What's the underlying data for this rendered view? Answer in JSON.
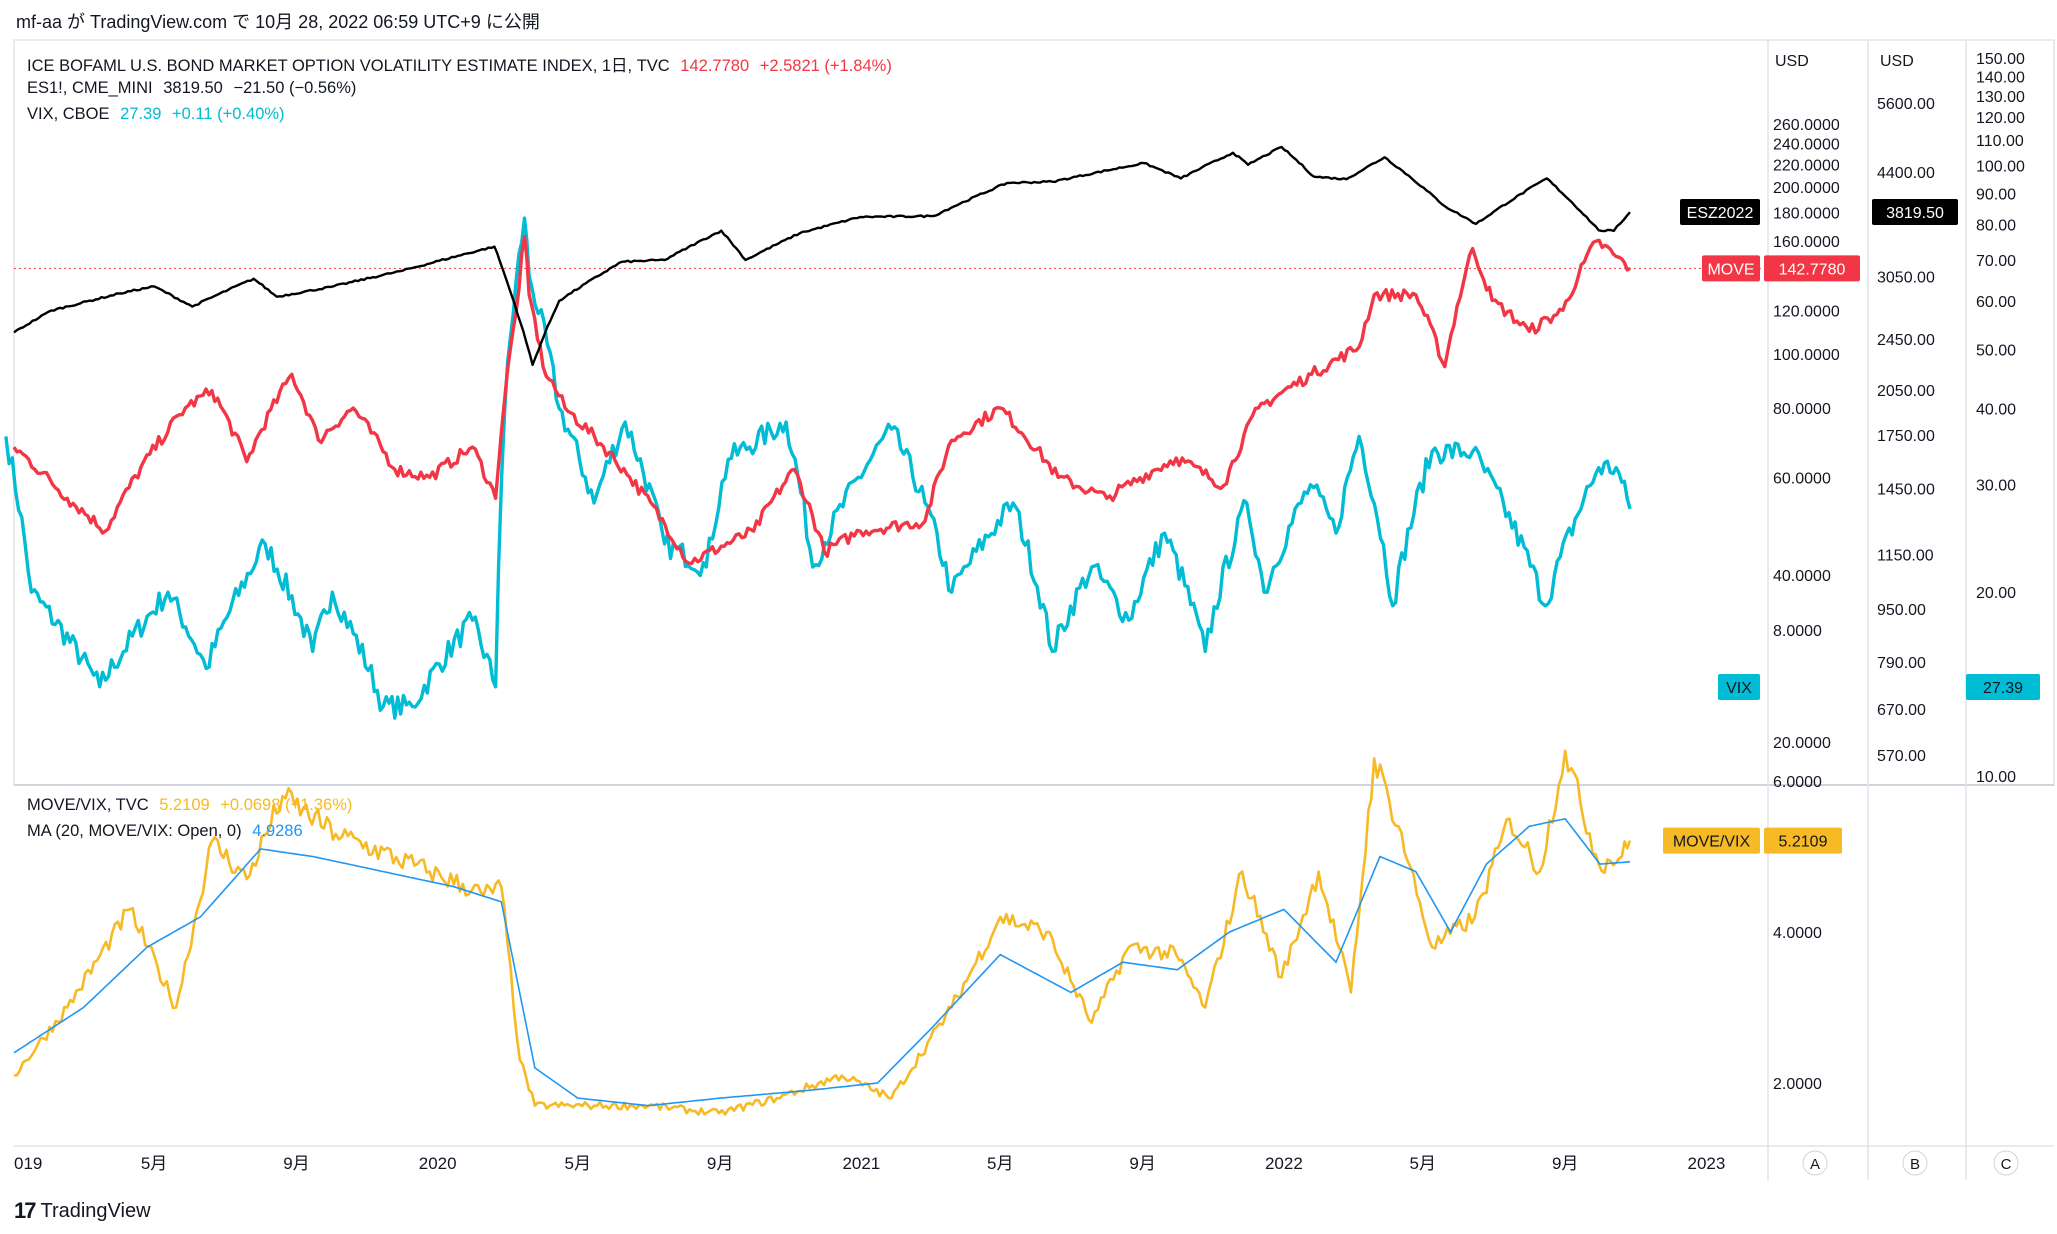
{
  "header": {
    "user": "mf-aa",
    "text_ga": "が",
    "site": "TradingView.com",
    "text_de": "で",
    "date": "10月 28, 2022 06:59 UTC+9",
    "text_publish": "に公開"
  },
  "colors": {
    "move": "#f23645",
    "vix": "#00bcd4",
    "es": "#000000",
    "ratio": "#f7b924",
    "ma": "#2196f3",
    "grid": "#e0e3eb"
  },
  "legend_main": [
    {
      "name": "ICE BOFAML U.S. BOND MARKET OPTION VOLATILITY ESTIMATE INDEX, 1日, TVC",
      "value": "142.7780",
      "change": "+2.5821 (+1.84%)",
      "color": "#f23645"
    },
    {
      "name": "ES1!, CME_MINI",
      "value": "3819.50",
      "change": "−21.50 (−0.56%)",
      "color": "#131722"
    },
    {
      "name": "VIX, CBOE",
      "value": "27.39",
      "change": "+0.11 (+0.40%)",
      "color": "#00bcd4"
    }
  ],
  "legend_lower": [
    {
      "name": "MOVE/VIX, TVC",
      "value": "5.2109",
      "change": "+0.0698 (+1.36%)",
      "color": "#f7b924"
    },
    {
      "name": "MA (20, MOVE/VIX: Open, 0)",
      "value": "4.9286",
      "change": "",
      "color": "#2196f3"
    }
  ],
  "axes": {
    "currency_a": "USD",
    "currency_b": "USD",
    "move_ticks": [
      "260.0000",
      "240.0000",
      "220.0000",
      "200.0000",
      "180.0000",
      "160.0000",
      "120.0000",
      "100.0000",
      "80.0000",
      "60.0000",
      "40.0000",
      "20.0000"
    ],
    "es_ticks": [
      "5600.00",
      "4400.00",
      "3050.00",
      "2450.00",
      "2050.00",
      "1750.00",
      "1450.00",
      "1150.00",
      "950.00",
      "790.00",
      "670.00",
      "570.00"
    ],
    "vix_ticks": [
      "150.00",
      "140.00",
      "130.00",
      "120.00",
      "110.00",
      "100.00",
      "90.00",
      "80.00",
      "70.00",
      "60.00",
      "50.00",
      "40.00",
      "30.00",
      "20.00",
      "10.00"
    ],
    "ratio_ticks": [
      "8.0000",
      "6.0000",
      "4.0000",
      "2.0000"
    ],
    "x_ticks": [
      "019",
      "5月",
      "9月",
      "2020",
      "5月",
      "9月",
      "2021",
      "5月",
      "9月",
      "2022",
      "5月",
      "9月",
      "2023"
    ],
    "scale_labels": [
      "A",
      "B",
      "C"
    ]
  },
  "price_tags": [
    {
      "label": "ESZ2022",
      "value": "3819.50"
    },
    {
      "label": "MOVE",
      "value": "142.7780"
    },
    {
      "label": "VIX",
      "value": "27.39"
    },
    {
      "label": "MOVE/VIX",
      "value": "5.2109"
    }
  ],
  "footer": {
    "logo": "17",
    "brand": "TradingView"
  },
  "chart_data": [
    {
      "type": "line",
      "x_range": [
        "2018-12-31",
        "2022-10-27"
      ],
      "series": [
        {
          "name": "ES1!",
          "color": "#000000",
          "x": [
            "2018-12-31",
            "2019-02-01",
            "2019-04-01",
            "2019-05-01",
            "2019-06-03",
            "2019-07-26",
            "2019-08-15",
            "2019-10-01",
            "2019-12-02",
            "2020-02-19",
            "2020-03-02",
            "2020-03-23",
            "2020-04-15",
            "2020-06-08",
            "2020-07-15",
            "2020-09-02",
            "2020-09-23",
            "2020-11-09",
            "2020-12-31",
            "2021-03-04",
            "2021-05-07",
            "2021-06-15",
            "2021-09-02",
            "2021-10-04",
            "2021-11-18",
            "2021-12-01",
            "2021-12-30",
            "2022-01-27",
            "2022-02-24",
            "2022-03-29",
            "2022-05-20",
            "2022-06-16",
            "2022-08-16",
            "2022-09-30",
            "2022-10-13",
            "2022-10-27"
          ],
          "values": [
            2506,
            2705,
            2872,
            2945,
            2744,
            3025,
            2840,
            2940,
            3113,
            3386,
            2954,
            2237,
            2800,
            3210,
            3230,
            3580,
            3230,
            3550,
            3756,
            3768,
            4232,
            4250,
            4537,
            4300,
            4705,
            4510,
            4800,
            4326,
            4288,
            4630,
            3900,
            3666,
            4300,
            3585,
            3577,
            3819.5
          ]
        },
        {
          "name": "MOVE",
          "color": "#f23645",
          "x": [
            "2018-12-31",
            "2019-02-15",
            "2019-03-20",
            "2019-05-28",
            "2019-06-20",
            "2019-07-20",
            "2019-08-28",
            "2019-09-20",
            "2019-10-20",
            "2019-11-25",
            "2019-12-25",
            "2020-01-31",
            "2020-02-20",
            "2020-03-09",
            "2020-03-16",
            "2020-03-20",
            "2020-04-01",
            "2020-04-20",
            "2020-06-15",
            "2020-08-05",
            "2020-09-30",
            "2020-11-04",
            "2020-11-30",
            "2020-12-31",
            "2021-02-25",
            "2021-03-20",
            "2021-05-01",
            "2021-06-20",
            "2021-08-01",
            "2021-09-30",
            "2021-11-10",
            "2021-12-10",
            "2022-01-25",
            "2022-03-07",
            "2022-03-20",
            "2022-04-25",
            "2022-05-20",
            "2022-06-13",
            "2022-06-30",
            "2022-08-01",
            "2022-08-30",
            "2022-09-28",
            "2022-10-15",
            "2022-10-27"
          ],
          "values": [
            68,
            55,
            48,
            80,
            86,
            64,
            92,
            70,
            80,
            62,
            60,
            68,
            55,
            120,
            163,
            128,
            95,
            80,
            60,
            42,
            48,
            62,
            44,
            48,
            50,
            70,
            80,
            60,
            55,
            65,
            58,
            80,
            92,
            103,
            128,
            128,
            95,
            155,
            125,
            110,
            120,
            160,
            150,
            142.778
          ]
        },
        {
          "name": "VIX",
          "color": "#00bcd4",
          "x": [
            "2018-12-24",
            "2019-01-15",
            "2019-03-15",
            "2019-05-13",
            "2019-06-15",
            "2019-08-05",
            "2019-09-15",
            "2019-10-02",
            "2019-11-15",
            "2019-12-10",
            "2020-01-31",
            "2020-02-20",
            "2020-02-28",
            "2020-03-16",
            "2020-03-20",
            "2020-04-15",
            "2020-05-15",
            "2020-06-11",
            "2020-07-15",
            "2020-08-20",
            "2020-09-08",
            "2020-10-28",
            "2020-11-20",
            "2021-01-27",
            "2021-02-25",
            "2021-03-20",
            "2021-05-12",
            "2021-06-15",
            "2021-07-19",
            "2021-08-20",
            "2021-09-20",
            "2021-10-25",
            "2021-11-30",
            "2021-12-15",
            "2022-01-24",
            "2022-02-15",
            "2022-03-07",
            "2022-04-05",
            "2022-05-09",
            "2022-06-13",
            "2022-08-15",
            "2022-09-30",
            "2022-10-15",
            "2022-10-27"
          ],
          "values": [
            36,
            20,
            14,
            20,
            15,
            24,
            16,
            20,
            13,
            13,
            18,
            14,
            40,
            82,
            66,
            40,
            28,
            38,
            24,
            22,
            33,
            38,
            22,
            37,
            28,
            20,
            28,
            16,
            22,
            18,
            25,
            16,
            28,
            20,
            30,
            25,
            36,
            19,
            34,
            34,
            19,
            32,
            32,
            27.39
          ]
        }
      ]
    },
    {
      "type": "line",
      "x_range": [
        "2018-12-31",
        "2022-10-27"
      ],
      "series": [
        {
          "name": "MOVE/VIX",
          "color": "#f7b924",
          "x": [
            "2018-12-31",
            "2019-02-15",
            "2019-04-10",
            "2019-05-20",
            "2019-06-20",
            "2019-07-20",
            "2019-08-20",
            "2019-10-05",
            "2019-12-25",
            "2020-02-10",
            "2020-02-25",
            "2020-03-12",
            "2020-03-25",
            "2020-05-15",
            "2020-07-01",
            "2020-08-31",
            "2020-10-20",
            "2020-12-15",
            "2021-01-27",
            "2021-03-20",
            "2021-05-01",
            "2021-06-10",
            "2021-07-19",
            "2021-08-20",
            "2021-09-30",
            "2021-10-25",
            "2021-11-26",
            "2021-12-30",
            "2022-01-31",
            "2022-02-28",
            "2022-03-20",
            "2022-04-10",
            "2022-05-09",
            "2022-06-15",
            "2022-07-15",
            "2022-08-10",
            "2022-09-01",
            "2022-09-30",
            "2022-10-20",
            "2022-10-27"
          ],
          "values": [
            2.1,
            3.0,
            4.3,
            3.0,
            5.2,
            4.7,
            5.8,
            5.3,
            4.8,
            4.5,
            4.6,
            2.3,
            1.7,
            1.7,
            1.7,
            1.6,
            1.8,
            2.1,
            1.8,
            3.0,
            4.2,
            4.0,
            2.8,
            3.8,
            3.7,
            3.0,
            4.8,
            3.4,
            4.8,
            3.2,
            6.3,
            5.4,
            3.8,
            4.2,
            5.5,
            4.8,
            6.4,
            4.9,
            5.0,
            5.2109
          ]
        },
        {
          "name": "MA (20, MOVE/VIX: Open, 0)",
          "color": "#2196f3",
          "x": [
            "2018-12-31",
            "2019-03-01",
            "2019-04-25",
            "2019-06-10",
            "2019-08-01",
            "2019-09-15",
            "2019-11-15",
            "2020-01-15",
            "2020-02-25",
            "2020-03-25",
            "2020-05-01",
            "2020-07-01",
            "2020-09-01",
            "2020-11-15",
            "2021-01-15",
            "2021-03-01",
            "2021-05-01",
            "2021-07-01",
            "2021-08-15",
            "2021-10-01",
            "2021-11-15",
            "2022-01-01",
            "2022-02-15",
            "2022-03-25",
            "2022-04-25",
            "2022-05-25",
            "2022-06-25",
            "2022-08-01",
            "2022-09-01",
            "2022-10-01",
            "2022-10-27"
          ],
          "values": [
            2.4,
            3.0,
            3.8,
            4.2,
            5.1,
            5.0,
            4.8,
            4.6,
            4.4,
            2.2,
            1.8,
            1.7,
            1.8,
            1.9,
            2.0,
            2.7,
            3.7,
            3.2,
            3.6,
            3.5,
            4.0,
            4.3,
            3.6,
            5.0,
            4.8,
            4.0,
            4.9,
            5.4,
            5.5,
            4.9,
            4.93
          ]
        }
      ]
    }
  ]
}
